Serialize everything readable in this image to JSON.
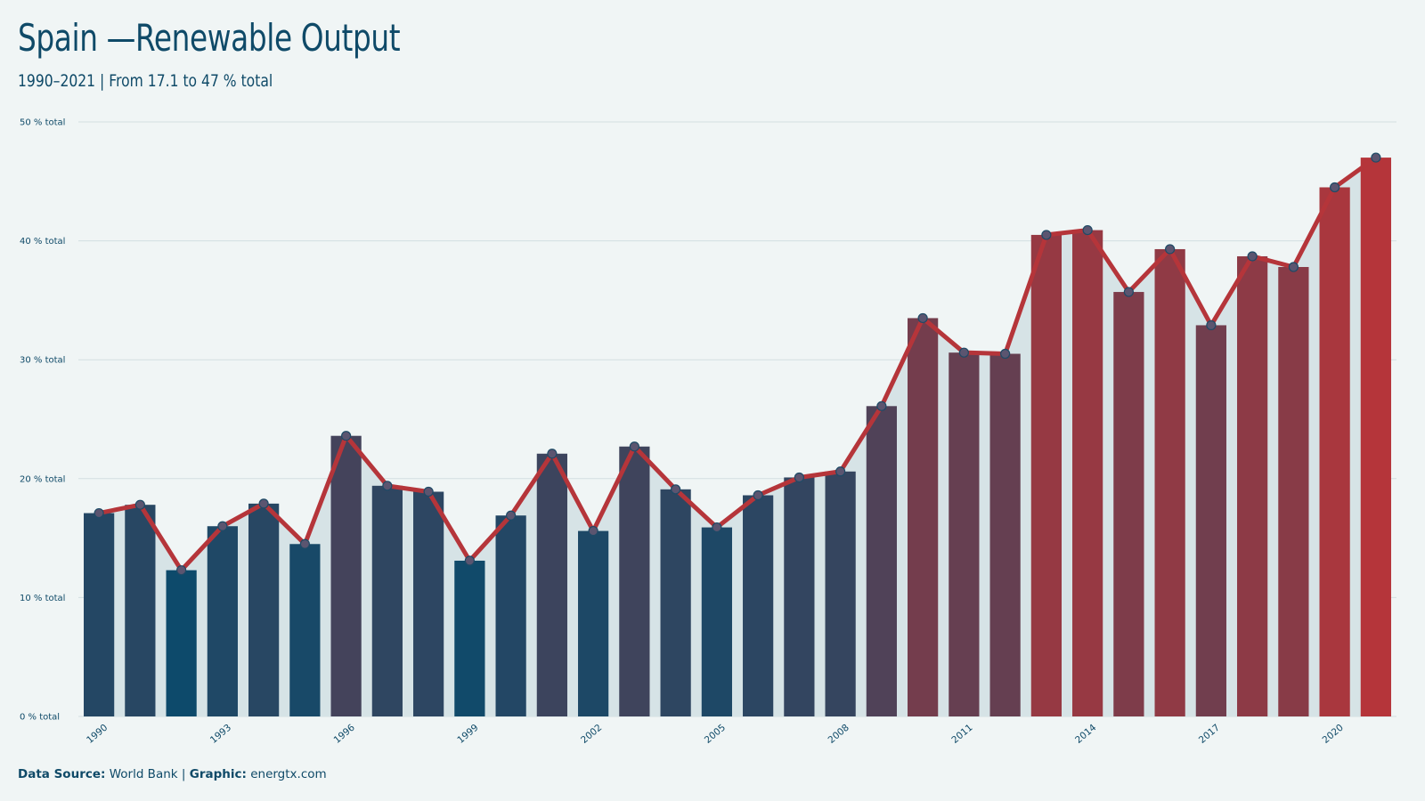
{
  "title": "Spain —Renewable Output",
  "subtitle": "1990–2021 | From 17.1 to 47 % total",
  "caption": {
    "source_label": "Data Source:",
    "source_value": "World Bank",
    "separator": "|",
    "graphic_label": "Graphic:",
    "graphic_value": "energtx.com"
  },
  "colors": {
    "background": "#f0f5f5",
    "low": "#0d4a6b",
    "high": "#b5353a",
    "line": "#b5353a",
    "area": "#d6e3e6",
    "grid": "#d3dfe1",
    "point_fill": "#5b5570",
    "point_stroke": "#1e4a66"
  },
  "chart_data": {
    "type": "bar",
    "x": [
      1990,
      1991,
      1992,
      1993,
      1994,
      1995,
      1996,
      1997,
      1998,
      1999,
      2000,
      2001,
      2002,
      2003,
      2004,
      2005,
      2006,
      2007,
      2008,
      2009,
      2010,
      2011,
      2012,
      2013,
      2014,
      2015,
      2016,
      2017,
      2018,
      2019,
      2020,
      2021
    ],
    "values": [
      17.1,
      17.8,
      12.3,
      16.0,
      17.9,
      14.5,
      23.6,
      19.4,
      18.9,
      13.1,
      16.9,
      22.1,
      15.6,
      22.7,
      19.1,
      15.9,
      18.6,
      20.1,
      20.6,
      26.1,
      33.5,
      30.6,
      30.5,
      40.5,
      40.9,
      35.7,
      39.3,
      32.9,
      38.7,
      37.8,
      44.5,
      47.0
    ],
    "xtick_labels": [
      "1990",
      "1993",
      "1996",
      "1999",
      "2002",
      "2005",
      "2008",
      "2011",
      "2014",
      "2017",
      "2020"
    ],
    "ytick_labels": [
      "0 % total",
      "10 % total",
      "20 % total",
      "30 % total",
      "40 % total",
      "50 % total"
    ],
    "ylim": [
      0,
      50
    ],
    "unit": "% total",
    "overlay": [
      "line",
      "area"
    ],
    "grid": true
  }
}
